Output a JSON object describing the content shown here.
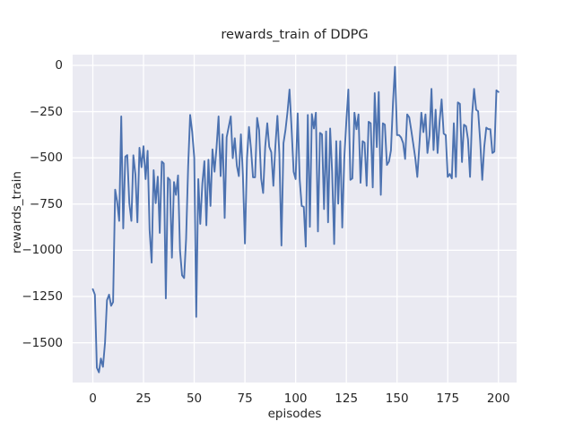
{
  "figure": {
    "title": "rewards_train of DDPG",
    "xlabel": "episodes",
    "ylabel": "rewards_train"
  },
  "chart_data": {
    "type": "line",
    "title": "rewards_train of DDPG",
    "xlabel": "episodes",
    "ylabel": "rewards_train",
    "legend": "none",
    "grid": true,
    "xlim": [
      -9.95,
      208.95
    ],
    "ylim": [
      -1715,
      58
    ],
    "xticks": [
      0,
      25,
      50,
      75,
      100,
      125,
      150,
      175,
      200
    ],
    "xtick_labels": [
      "0",
      "25",
      "50",
      "75",
      "100",
      "125",
      "150",
      "175",
      "200"
    ],
    "yticks": [
      0,
      -250,
      -500,
      -750,
      -1000,
      -1250,
      -1500
    ],
    "ytick_labels": [
      "0",
      "−250",
      "−500",
      "−750",
      "−1000",
      "−1250",
      "−1500"
    ],
    "colors": {
      "figure_bg": "#FFFFFF",
      "axes_bg": "#EAEAF2",
      "grid": "#FFFFFF",
      "text": "#262626",
      "line": "#4C72B0"
    },
    "x_start": 0,
    "x_step": 1,
    "n_points": 201,
    "series": [
      {
        "name": "rewards_train",
        "color": "#4C72B0",
        "values": [
          -1210,
          -1240,
          -1635,
          -1660,
          -1585,
          -1630,
          -1500,
          -1270,
          -1240,
          -1300,
          -1280,
          -672,
          -736,
          -841,
          -276,
          -882,
          -494,
          -485,
          -745,
          -841,
          -486,
          -591,
          -849,
          -446,
          -551,
          -437,
          -615,
          -462,
          -890,
          -1067,
          -567,
          -745,
          -602,
          -906,
          -520,
          -530,
          -1260,
          -607,
          -620,
          -1040,
          -631,
          -700,
          -595,
          -1000,
          -1135,
          -1150,
          -938,
          -545,
          -268,
          -360,
          -500,
          -1360,
          -615,
          -857,
          -640,
          -518,
          -865,
          -510,
          -760,
          -454,
          -575,
          -447,
          -276,
          -599,
          -373,
          -825,
          -389,
          -333,
          -276,
          -502,
          -394,
          -543,
          -599,
          -373,
          -590,
          -963,
          -502,
          -333,
          -454,
          -605,
          -605,
          -284,
          -350,
          -613,
          -690,
          -440,
          -313,
          -440,
          -470,
          -651,
          -440,
          -273,
          -480,
          -974,
          -420,
          -350,
          -250,
          -131,
          -341,
          -575,
          -615,
          -260,
          -620,
          -760,
          -765,
          -980,
          -268,
          -873,
          -263,
          -341,
          -256,
          -898,
          -365,
          -373,
          -777,
          -357,
          -849,
          -341,
          -575,
          -966,
          -410,
          -748,
          -410,
          -877,
          -500,
          -300,
          -131,
          -619,
          -611,
          -256,
          -345,
          -265,
          -635,
          -410,
          -418,
          -651,
          -305,
          -313,
          -660,
          -150,
          -442,
          -144,
          -700,
          -313,
          -321,
          -539,
          -520,
          -460,
          -200,
          -8,
          -377,
          -377,
          -390,
          -420,
          -506,
          -265,
          -281,
          -350,
          -426,
          -500,
          -603,
          -430,
          -256,
          -361,
          -265,
          -474,
          -380,
          -127,
          -458,
          -240,
          -474,
          -300,
          -184,
          -369,
          -377,
          -603,
          -587,
          -611,
          -313,
          -603,
          -200,
          -208,
          -523,
          -321,
          -329,
          -400,
          -603,
          -265,
          -127,
          -240,
          -248,
          -410,
          -619,
          -442,
          -337,
          -345,
          -345,
          -474,
          -466,
          -135,
          -144
        ]
      }
    ]
  }
}
